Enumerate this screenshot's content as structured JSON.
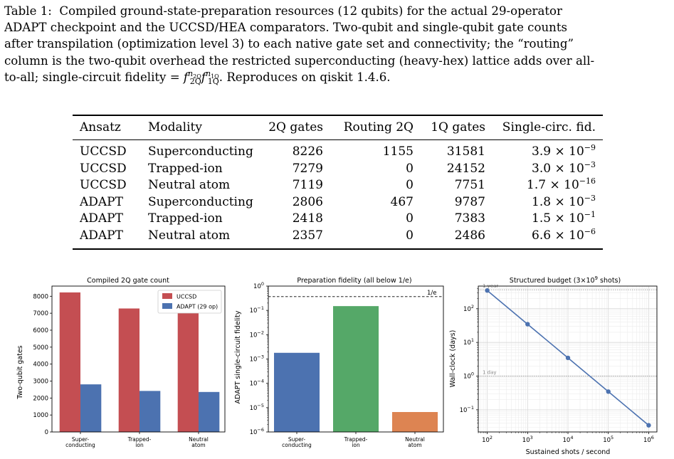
{
  "caption": {
    "label": "Table 1:",
    "line1": "Compiled ground-state-preparation resources (12 qubits) for the actual 29-operator",
    "line2": "ADAPT checkpoint and the UCCSD/HEA comparators. Two-qubit and single-qubit gate counts",
    "line3": "after transpilation (optimization level 3) to each native gate set and connectivity; the “routing”",
    "line4": "column is the two-qubit overhead the restricted superconducting (heavy-hex) lattice adds over all-",
    "line5a": "to-all; single-circuit fidelity = ",
    "line5b": ". Reproduces on qiskit 1.4.6.",
    "formula_f": "f",
    "formula_sub1": "2Q",
    "formula_sup1": "n",
    "formula_sup1_sub": "2Q",
    "formula_sub2": "1Q",
    "formula_sup2": "n",
    "formula_sup2_sub": "1Q"
  },
  "table": {
    "headers": [
      "Ansatz",
      "Modality",
      "2Q gates",
      "Routing 2Q",
      "1Q gates",
      "Single-circ. fid."
    ],
    "rows": [
      {
        "ansatz": "UCCSD",
        "modality": "Superconducting",
        "g2": "8226",
        "routing": "1155",
        "g1": "31581",
        "fid_m": "3.9 × 10",
        "fid_e": "−9"
      },
      {
        "ansatz": "UCCSD",
        "modality": "Trapped-ion",
        "g2": "7279",
        "routing": "0",
        "g1": "24152",
        "fid_m": "3.0 × 10",
        "fid_e": "−3"
      },
      {
        "ansatz": "UCCSD",
        "modality": "Neutral atom",
        "g2": "7119",
        "routing": "0",
        "g1": "7751",
        "fid_m": "1.7 × 10",
        "fid_e": "−16"
      },
      {
        "ansatz": "ADAPT",
        "modality": "Superconducting",
        "g2": "2806",
        "routing": "467",
        "g1": "9787",
        "fid_m": "1.8 × 10",
        "fid_e": "−3"
      },
      {
        "ansatz": "ADAPT",
        "modality": "Trapped-ion",
        "g2": "2418",
        "routing": "0",
        "g1": "7383",
        "fid_m": "1.5 × 10",
        "fid_e": "−1"
      },
      {
        "ansatz": "ADAPT",
        "modality": "Neutral atom",
        "g2": "2357",
        "routing": "0",
        "g1": "2486",
        "fid_m": "6.6 × 10",
        "fid_e": "−6"
      }
    ]
  },
  "chart_data": [
    {
      "type": "bar",
      "title": "Compiled 2Q gate count",
      "ylabel": "Two-qubit gates",
      "categories": [
        [
          "Super-",
          "conducting"
        ],
        [
          "Trapped-",
          "ion"
        ],
        [
          "Neutral",
          "atom"
        ]
      ],
      "series": [
        {
          "name": "UCCSD",
          "values": [
            8226,
            7279,
            7119
          ],
          "color": "#c44e52"
        },
        {
          "name": "ADAPT (29 op)",
          "values": [
            2806,
            2418,
            2357
          ],
          "color": "#4c72b0"
        }
      ],
      "ylim": [
        0,
        8600
      ],
      "yticks": [
        "0",
        "1000",
        "2000",
        "3000",
        "4000",
        "5000",
        "6000",
        "7000",
        "8000"
      ],
      "legend": "top-right"
    },
    {
      "type": "bar",
      "title": "Preparation fidelity (all below 1/e)",
      "ylabel": "ADAPT single-circuit fidelity",
      "categories": [
        [
          "Super-",
          "conducting"
        ],
        [
          "Trapped-",
          "ion"
        ],
        [
          "Neutral",
          "atom"
        ]
      ],
      "values": [
        0.0018,
        0.15,
        6.6e-06
      ],
      "colors": [
        "#4c72b0",
        "#55a868",
        "#dd8452"
      ],
      "yscale": "log",
      "ylim": [
        1e-06,
        1
      ],
      "yticks": [
        {
          "b": "10",
          "e": "0"
        },
        {
          "b": "10",
          "e": "−1"
        },
        {
          "b": "10",
          "e": "−2"
        },
        {
          "b": "10",
          "e": "−3"
        },
        {
          "b": "10",
          "e": "−4"
        },
        {
          "b": "10",
          "e": "−5"
        },
        {
          "b": "10",
          "e": "−6"
        }
      ],
      "reference_line": {
        "value": 0.3679,
        "label": "1/e"
      }
    },
    {
      "type": "line",
      "title_prefix": "Structured budget (3×10",
      "title_exp": "9",
      "title_suffix": " shots)",
      "xlabel": "Sustained shots / second",
      "ylabel": "Wall-clock (days)",
      "xscale": "log",
      "yscale": "log",
      "x": [
        100,
        1000,
        10000,
        100000,
        1000000
      ],
      "y": [
        347.2,
        34.72,
        3.472,
        0.3472,
        0.03472
      ],
      "color": "#4c72b0",
      "xlim": [
        60,
        1600000
      ],
      "ylim": [
        0.022,
        470
      ],
      "xticks": [
        {
          "b": "10",
          "e": "2"
        },
        {
          "b": "10",
          "e": "3"
        },
        {
          "b": "10",
          "e": "4"
        },
        {
          "b": "10",
          "e": "5"
        },
        {
          "b": "10",
          "e": "6"
        }
      ],
      "yticks": [
        {
          "b": "10",
          "e": "2"
        },
        {
          "b": "10",
          "e": "1"
        },
        {
          "b": "10",
          "e": "0"
        },
        {
          "b": "10",
          "e": "−1"
        }
      ],
      "reference_lines": [
        {
          "value": 365,
          "label": "1 year"
        },
        {
          "value": 1,
          "label": "1 day"
        }
      ],
      "grid": true
    }
  ]
}
